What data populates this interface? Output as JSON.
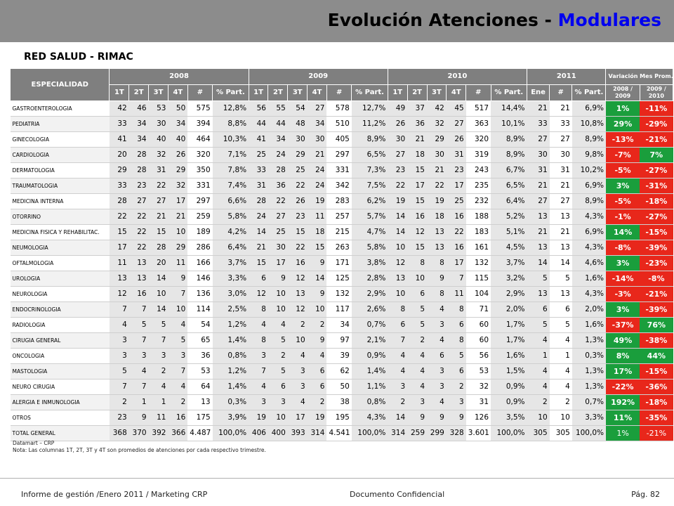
{
  "header": {
    "title_main": "Evolución Atenciones - ",
    "title_accent": "Modulares"
  },
  "subtitle": "RED SALUD - RIMAC",
  "table": {
    "esp_header": "ESPECIALIDAD",
    "years": [
      "2008",
      "2009",
      "2010",
      "2011"
    ],
    "var_header": "Variación Mes Prom.",
    "sub_q": [
      "1T",
      "2T",
      "3T",
      "4T",
      "#",
      "% Part."
    ],
    "sub_2011": [
      "Ene",
      "#",
      "% Part."
    ],
    "sub_var": [
      "2008 / 2009",
      "2009 / 2010"
    ],
    "rows": [
      {
        "name": "GASTROENTEROLOGIA",
        "y08": [
          "42",
          "46",
          "53",
          "50",
          "575",
          "12,8%"
        ],
        "y09": [
          "56",
          "55",
          "54",
          "27",
          "578",
          "12,7%"
        ],
        "y10": [
          "49",
          "37",
          "42",
          "45",
          "517",
          "14,4%"
        ],
        "y11": [
          "21",
          "21",
          "6,9%"
        ],
        "v1": "1%",
        "v1c": "g",
        "v2": "-11%",
        "v2c": "r"
      },
      {
        "name": "PEDIATRIA",
        "y08": [
          "33",
          "34",
          "30",
          "34",
          "394",
          "8,8%"
        ],
        "y09": [
          "44",
          "44",
          "48",
          "34",
          "510",
          "11,2%"
        ],
        "y10": [
          "26",
          "36",
          "32",
          "27",
          "363",
          "10,1%"
        ],
        "y11": [
          "33",
          "33",
          "10,8%"
        ],
        "v1": "29%",
        "v1c": "g",
        "v2": "-29%",
        "v2c": "r"
      },
      {
        "name": "GINECOLOGIA",
        "y08": [
          "41",
          "34",
          "40",
          "40",
          "464",
          "10,3%"
        ],
        "y09": [
          "41",
          "34",
          "30",
          "30",
          "405",
          "8,9%"
        ],
        "y10": [
          "30",
          "21",
          "29",
          "26",
          "320",
          "8,9%"
        ],
        "y11": [
          "27",
          "27",
          "8,9%"
        ],
        "v1": "-13%",
        "v1c": "r",
        "v2": "-21%",
        "v2c": "r"
      },
      {
        "name": "CARDIOLOGIA",
        "y08": [
          "20",
          "28",
          "32",
          "26",
          "320",
          "7,1%"
        ],
        "y09": [
          "25",
          "24",
          "29",
          "21",
          "297",
          "6,5%"
        ],
        "y10": [
          "27",
          "18",
          "30",
          "31",
          "319",
          "8,9%"
        ],
        "y11": [
          "30",
          "30",
          "9,8%"
        ],
        "v1": "-7%",
        "v1c": "r",
        "v2": "7%",
        "v2c": "g"
      },
      {
        "name": "DERMATOLOGIA",
        "y08": [
          "29",
          "28",
          "31",
          "29",
          "350",
          "7,8%"
        ],
        "y09": [
          "33",
          "28",
          "25",
          "24",
          "331",
          "7,3%"
        ],
        "y10": [
          "23",
          "15",
          "21",
          "23",
          "243",
          "6,7%"
        ],
        "y11": [
          "31",
          "31",
          "10,2%"
        ],
        "v1": "-5%",
        "v1c": "r",
        "v2": "-27%",
        "v2c": "r"
      },
      {
        "name": "TRAUMATOLOGIA",
        "y08": [
          "33",
          "23",
          "22",
          "32",
          "331",
          "7,4%"
        ],
        "y09": [
          "31",
          "36",
          "22",
          "24",
          "342",
          "7,5%"
        ],
        "y10": [
          "22",
          "17",
          "22",
          "17",
          "235",
          "6,5%"
        ],
        "y11": [
          "21",
          "21",
          "6,9%"
        ],
        "v1": "3%",
        "v1c": "g",
        "v2": "-31%",
        "v2c": "r"
      },
      {
        "name": "MEDICINA INTERNA",
        "y08": [
          "28",
          "27",
          "27",
          "17",
          "297",
          "6,6%"
        ],
        "y09": [
          "28",
          "22",
          "26",
          "19",
          "283",
          "6,2%"
        ],
        "y10": [
          "19",
          "15",
          "19",
          "25",
          "232",
          "6,4%"
        ],
        "y11": [
          "27",
          "27",
          "8,9%"
        ],
        "v1": "-5%",
        "v1c": "r",
        "v2": "-18%",
        "v2c": "r"
      },
      {
        "name": "OTORRINO",
        "y08": [
          "22",
          "22",
          "21",
          "21",
          "259",
          "5,8%"
        ],
        "y09": [
          "24",
          "27",
          "23",
          "11",
          "257",
          "5,7%"
        ],
        "y10": [
          "14",
          "16",
          "18",
          "16",
          "188",
          "5,2%"
        ],
        "y11": [
          "13",
          "13",
          "4,3%"
        ],
        "v1": "-1%",
        "v1c": "r",
        "v2": "-27%",
        "v2c": "r"
      },
      {
        "name": "MEDICINA FISICA Y REHABILITAC.",
        "y08": [
          "15",
          "22",
          "15",
          "10",
          "189",
          "4,2%"
        ],
        "y09": [
          "14",
          "25",
          "15",
          "18",
          "215",
          "4,7%"
        ],
        "y10": [
          "14",
          "12",
          "13",
          "22",
          "183",
          "5,1%"
        ],
        "y11": [
          "21",
          "21",
          "6,9%"
        ],
        "v1": "14%",
        "v1c": "g",
        "v2": "-15%",
        "v2c": "r"
      },
      {
        "name": "NEUMOLOGIA",
        "y08": [
          "17",
          "22",
          "28",
          "29",
          "286",
          "6,4%"
        ],
        "y09": [
          "21",
          "30",
          "22",
          "15",
          "263",
          "5,8%"
        ],
        "y10": [
          "10",
          "15",
          "13",
          "16",
          "161",
          "4,5%"
        ],
        "y11": [
          "13",
          "13",
          "4,3%"
        ],
        "v1": "-8%",
        "v1c": "r",
        "v2": "-39%",
        "v2c": "r"
      },
      {
        "name": "OFTALMOLOGIA",
        "y08": [
          "11",
          "13",
          "20",
          "11",
          "166",
          "3,7%"
        ],
        "y09": [
          "15",
          "17",
          "16",
          "9",
          "171",
          "3,8%"
        ],
        "y10": [
          "12",
          "8",
          "8",
          "17",
          "132",
          "3,7%"
        ],
        "y11": [
          "14",
          "14",
          "4,6%"
        ],
        "v1": "3%",
        "v1c": "g",
        "v2": "-23%",
        "v2c": "r"
      },
      {
        "name": "UROLOGIA",
        "y08": [
          "13",
          "13",
          "14",
          "9",
          "146",
          "3,3%"
        ],
        "y09": [
          "6",
          "9",
          "12",
          "14",
          "125",
          "2,8%"
        ],
        "y10": [
          "13",
          "10",
          "9",
          "7",
          "115",
          "3,2%"
        ],
        "y11": [
          "5",
          "5",
          "1,6%"
        ],
        "v1": "-14%",
        "v1c": "r",
        "v2": "-8%",
        "v2c": "r"
      },
      {
        "name": "NEUROLOGIA",
        "y08": [
          "12",
          "16",
          "10",
          "7",
          "136",
          "3,0%"
        ],
        "y09": [
          "12",
          "10",
          "13",
          "9",
          "132",
          "2,9%"
        ],
        "y10": [
          "10",
          "6",
          "8",
          "11",
          "104",
          "2,9%"
        ],
        "y11": [
          "13",
          "13",
          "4,3%"
        ],
        "v1": "-3%",
        "v1c": "r",
        "v2": "-21%",
        "v2c": "r"
      },
      {
        "name": "ENDOCRINOLOGIA",
        "y08": [
          "7",
          "7",
          "14",
          "10",
          "114",
          "2,5%"
        ],
        "y09": [
          "8",
          "10",
          "12",
          "10",
          "117",
          "2,6%"
        ],
        "y10": [
          "8",
          "5",
          "4",
          "8",
          "71",
          "2,0%"
        ],
        "y11": [
          "6",
          "6",
          "2,0%"
        ],
        "v1": "3%",
        "v1c": "g",
        "v2": "-39%",
        "v2c": "r"
      },
      {
        "name": "RADIOLOGIA",
        "y08": [
          "4",
          "5",
          "5",
          "4",
          "54",
          "1,2%"
        ],
        "y09": [
          "4",
          "4",
          "2",
          "2",
          "34",
          "0,7%"
        ],
        "y10": [
          "6",
          "5",
          "3",
          "6",
          "60",
          "1,7%"
        ],
        "y11": [
          "5",
          "5",
          "1,6%"
        ],
        "v1": "-37%",
        "v1c": "r",
        "v2": "76%",
        "v2c": "g"
      },
      {
        "name": "CIRUGIA GENERAL",
        "y08": [
          "3",
          "7",
          "7",
          "5",
          "65",
          "1,4%"
        ],
        "y09": [
          "8",
          "5",
          "10",
          "9",
          "97",
          "2,1%"
        ],
        "y10": [
          "7",
          "2",
          "4",
          "8",
          "60",
          "1,7%"
        ],
        "y11": [
          "4",
          "4",
          "1,3%"
        ],
        "v1": "49%",
        "v1c": "g",
        "v2": "-38%",
        "v2c": "r"
      },
      {
        "name": "ONCOLOGIA",
        "y08": [
          "3",
          "3",
          "3",
          "3",
          "36",
          "0,8%"
        ],
        "y09": [
          "3",
          "2",
          "4",
          "4",
          "39",
          "0,9%"
        ],
        "y10": [
          "4",
          "4",
          "6",
          "5",
          "56",
          "1,6%"
        ],
        "y11": [
          "1",
          "1",
          "0,3%"
        ],
        "v1": "8%",
        "v1c": "g",
        "v2": "44%",
        "v2c": "g"
      },
      {
        "name": "MASTOLOGIA",
        "y08": [
          "5",
          "4",
          "2",
          "7",
          "53",
          "1,2%"
        ],
        "y09": [
          "7",
          "5",
          "3",
          "6",
          "62",
          "1,4%"
        ],
        "y10": [
          "4",
          "4",
          "3",
          "6",
          "53",
          "1,5%"
        ],
        "y11": [
          "4",
          "4",
          "1,3%"
        ],
        "v1": "17%",
        "v1c": "g",
        "v2": "-15%",
        "v2c": "r"
      },
      {
        "name": "NEURO CIRUGIA",
        "y08": [
          "7",
          "7",
          "4",
          "4",
          "64",
          "1,4%"
        ],
        "y09": [
          "4",
          "6",
          "3",
          "6",
          "50",
          "1,1%"
        ],
        "y10": [
          "3",
          "4",
          "3",
          "2",
          "32",
          "0,9%"
        ],
        "y11": [
          "4",
          "4",
          "1,3%"
        ],
        "v1": "-22%",
        "v1c": "r",
        "v2": "-36%",
        "v2c": "r"
      },
      {
        "name": "ALERGIA E INMUNOLOGIA",
        "y08": [
          "2",
          "1",
          "1",
          "2",
          "13",
          "0,3%"
        ],
        "y09": [
          "3",
          "3",
          "4",
          "2",
          "38",
          "0,8%"
        ],
        "y10": [
          "2",
          "3",
          "4",
          "3",
          "31",
          "0,9%"
        ],
        "y11": [
          "2",
          "2",
          "0,7%"
        ],
        "v1": "192%",
        "v1c": "g",
        "v2": "-18%",
        "v2c": "r"
      },
      {
        "name": "OTROS",
        "y08": [
          "23",
          "9",
          "11",
          "16",
          "175",
          "3,9%"
        ],
        "y09": [
          "19",
          "10",
          "17",
          "19",
          "195",
          "4,3%"
        ],
        "y10": [
          "14",
          "9",
          "9",
          "9",
          "126",
          "3,5%"
        ],
        "y11": [
          "10",
          "10",
          "3,3%"
        ],
        "v1": "11%",
        "v1c": "g",
        "v2": "-35%",
        "v2c": "r"
      },
      {
        "name": "TOTAL GENERAL",
        "y08": [
          "368",
          "370",
          "392",
          "366",
          "4.487",
          "100,0%"
        ],
        "y09": [
          "406",
          "400",
          "393",
          "314",
          "4.541",
          "100,0%"
        ],
        "y10": [
          "314",
          "259",
          "299",
          "328",
          "3.601",
          "100,0%"
        ],
        "y11": [
          "305",
          "305",
          "100,0%"
        ],
        "v1": "1%",
        "v1c": "g",
        "v2": "-21%",
        "v2c": "r"
      }
    ]
  },
  "notes": {
    "line1": "Datamart – CRP",
    "line2": "Nota: Las columnas 1T, 2T,  3T y 4T  son promedios de atenciones por cada respectivo trimestre."
  },
  "footer": {
    "left": "Informe de gestión /Enero 2011 / Marketing CRP",
    "center": "Documento Confidencial",
    "right": "Pág. 82"
  }
}
